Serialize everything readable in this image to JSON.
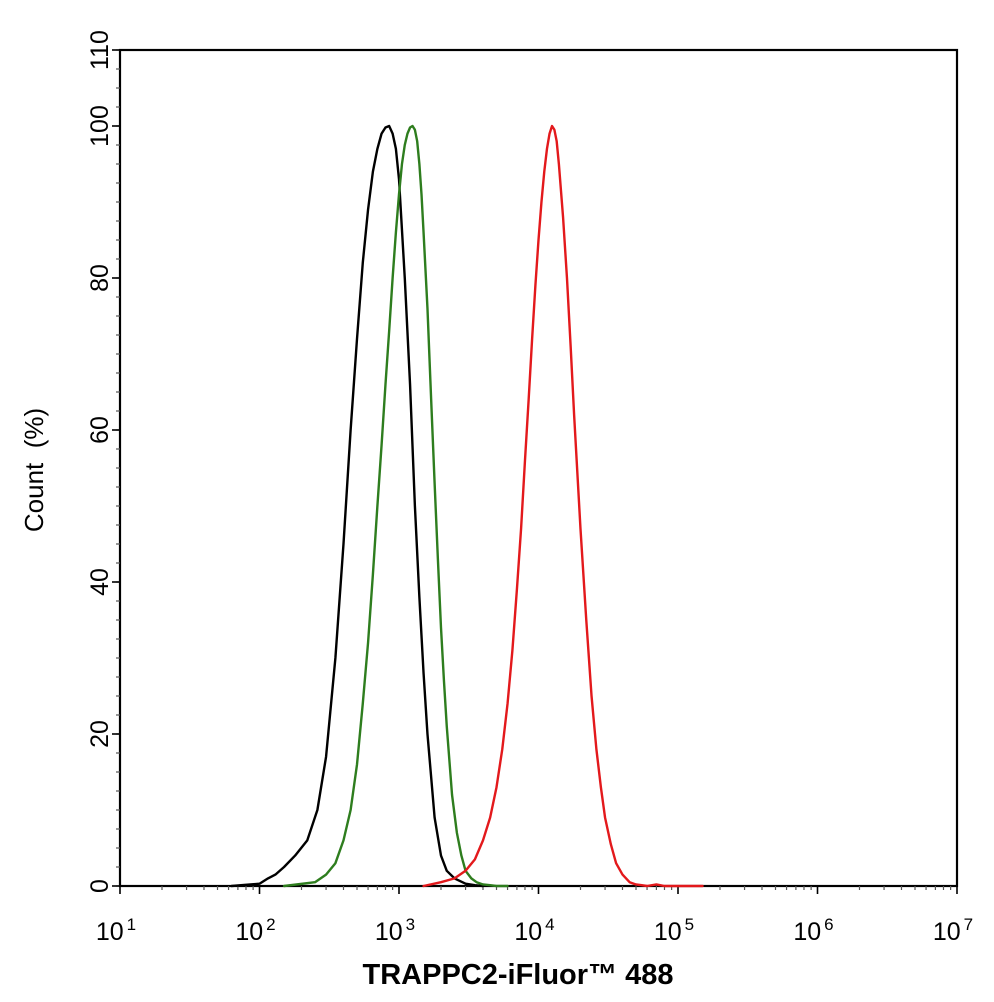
{
  "chart_data": {
    "type": "line",
    "title": "",
    "xlabel": "TRAPPC2-iFluor™ 488",
    "ylabel": "Count  (%)",
    "xscale": "log",
    "xlim": [
      10,
      10000000
    ],
    "ylim": [
      0,
      110
    ],
    "x_tick_labels": [
      {
        "base": "10",
        "exp": "1"
      },
      {
        "base": "10",
        "exp": "2"
      },
      {
        "base": "10",
        "exp": "3"
      },
      {
        "base": "10",
        "exp": "4"
      },
      {
        "base": "10",
        "exp": "5"
      },
      {
        "base": "10",
        "exp": "6"
      },
      {
        "base": "10",
        "exp": "7"
      }
    ],
    "y_tick_labels": [
      "0",
      "20",
      "40",
      "60",
      "80",
      "100",
      "110"
    ],
    "grid": false,
    "series": [
      {
        "color": "#000000",
        "x": [
          63,
          100,
          115,
          130,
          150,
          180,
          220,
          260,
          300,
          350,
          400,
          450,
          500,
          550,
          600,
          650,
          700,
          750,
          800,
          850,
          900,
          950,
          1000,
          1100,
          1200,
          1300,
          1400,
          1500,
          1600,
          1800,
          2000,
          2200,
          2500,
          3000,
          3500,
          4000
        ],
        "y": [
          0,
          0.3,
          1,
          1.5,
          2.5,
          4,
          6,
          10,
          17,
          30,
          45,
          60,
          72,
          82,
          89,
          94,
          97,
          99,
          99.8,
          100,
          99,
          97,
          93,
          80,
          66,
          50,
          38,
          28,
          20,
          9,
          4,
          2,
          1,
          0.3,
          0.1,
          0
        ]
      },
      {
        "color": "#2e7d1e",
        "x": [
          150,
          250,
          300,
          350,
          400,
          450,
          500,
          550,
          600,
          650,
          700,
          750,
          800,
          850,
          900,
          950,
          1000,
          1050,
          1100,
          1150,
          1200,
          1250,
          1300,
          1350,
          1400,
          1450,
          1500,
          1600,
          1700,
          1800,
          1900,
          2000,
          2100,
          2200,
          2400,
          2600,
          2800,
          3000,
          3300,
          3600,
          4000,
          4500,
          5000,
          6000
        ],
        "y": [
          0,
          0.5,
          1.5,
          3,
          6,
          10,
          16,
          24,
          32,
          41,
          50,
          58,
          66,
          73,
          80,
          86,
          91,
          95,
          97.5,
          99,
          99.8,
          100,
          99.5,
          98,
          95,
          91,
          86,
          76,
          64,
          53,
          43,
          34,
          27,
          21,
          12,
          7,
          4,
          2,
          1,
          0.5,
          0.2,
          0.1,
          0,
          0
        ]
      },
      {
        "color": "#e3191c",
        "x": [
          1500,
          2000,
          2500,
          3000,
          3500,
          4000,
          4500,
          5000,
          5500,
          6000,
          6500,
          7000,
          7500,
          8000,
          8500,
          9000,
          9500,
          10000,
          10500,
          11000,
          11500,
          12000,
          12500,
          13000,
          13500,
          14000,
          15000,
          16000,
          17000,
          18000,
          20000,
          22000,
          24000,
          26000,
          28000,
          30000,
          33000,
          36000,
          40000,
          45000,
          50000,
          55000,
          60000,
          70000,
          80000,
          100000,
          150000
        ],
        "y": [
          0,
          0.5,
          1,
          2,
          3.5,
          6,
          9,
          13,
          18,
          24,
          31,
          39,
          47,
          56,
          64,
          72,
          79,
          85,
          90,
          94,
          97,
          99,
          100,
          99.5,
          98,
          95,
          88,
          80,
          71,
          62,
          47,
          35,
          25,
          18,
          13,
          9,
          5.5,
          3,
          1.5,
          0.5,
          0.2,
          0.1,
          0,
          0.2,
          0,
          0,
          0
        ]
      }
    ]
  }
}
